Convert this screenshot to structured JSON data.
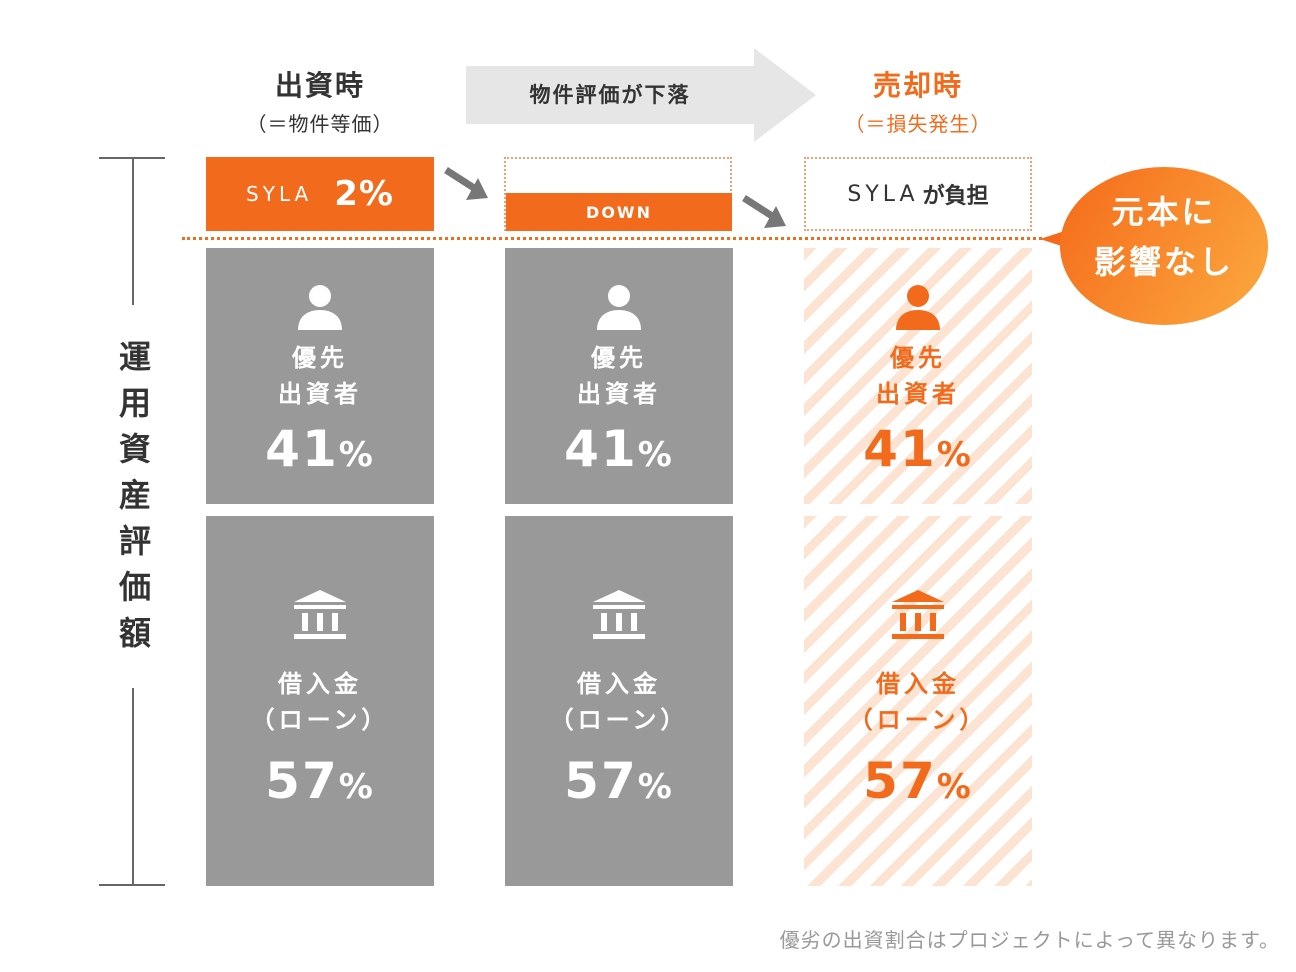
{
  "columns": [
    {
      "title": "出資時",
      "subtitle": "（＝物件等価）"
    },
    {
      "title": "売却時",
      "subtitle": "（＝損失発生）"
    }
  ],
  "banner": {
    "text": "物件評価が下落"
  },
  "axis": {
    "label": "運用資産評価額"
  },
  "top_boxes": {
    "sy_brand": "SYLA",
    "sy_percent": "2%",
    "down": "DOWN",
    "burden_brand": "SYLA",
    "burden_text": "が負担"
  },
  "blocks": {
    "investor": {
      "line1": "優先",
      "line2": "出資者",
      "value": "41",
      "unit": "%"
    },
    "loan": {
      "line1": "借入金",
      "line2": "（ローン）",
      "value": "57",
      "unit": "%"
    }
  },
  "callout": {
    "line1": "元本に",
    "line2": "影響なし"
  },
  "footnote": "優劣の出資割合はプロジェクトによって異なります。",
  "colors": {
    "accent": "#f26b1d",
    "gray_block": "#999999",
    "stripe": "#fde3d2",
    "banner": "#e6e6e6"
  },
  "icons": {
    "investor": "person-icon",
    "loan": "bank-icon",
    "flow": "arrow-down-right-icon"
  }
}
